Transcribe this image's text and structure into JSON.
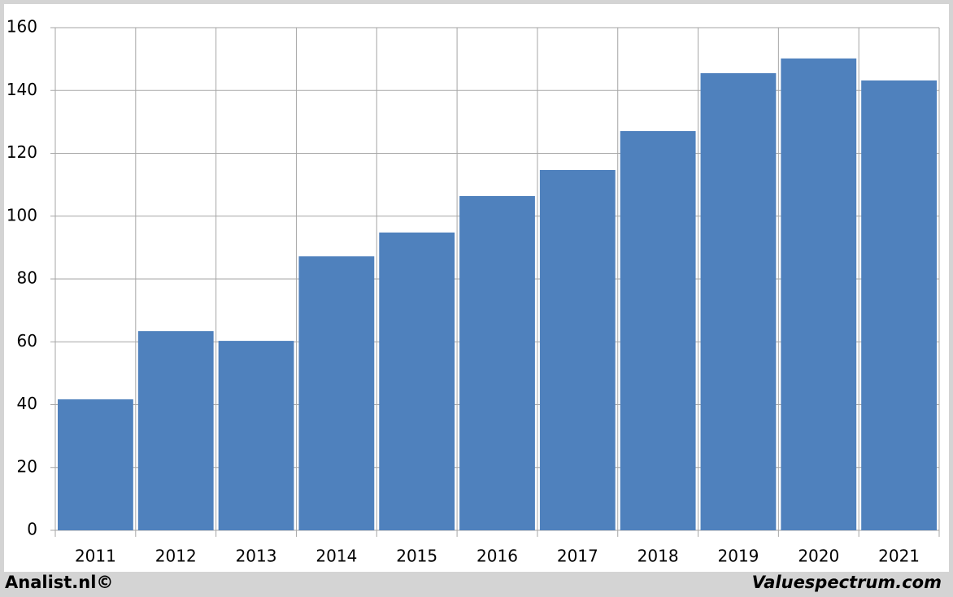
{
  "chart_data": {
    "type": "bar",
    "categories": [
      "2011",
      "2012",
      "2013",
      "2014",
      "2015",
      "2016",
      "2017",
      "2018",
      "2019",
      "2020",
      "2021"
    ],
    "values": [
      41.7,
      63.4,
      60.3,
      87.2,
      94.8,
      106.4,
      114.7,
      127.1,
      145.5,
      150.2,
      143.2
    ],
    "color": "#4f81bd",
    "ylim": [
      0,
      160
    ],
    "yticks": [
      0,
      20,
      40,
      60,
      80,
      100,
      120,
      140,
      160
    ],
    "grid": true,
    "footer_left": "Analist.nl©",
    "footer_right": "Valuespectrum.com"
  }
}
